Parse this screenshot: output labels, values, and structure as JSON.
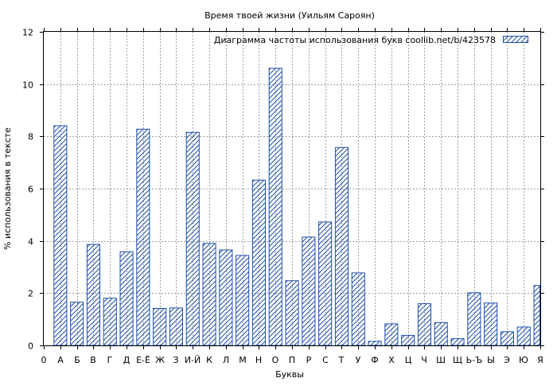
{
  "colors": {
    "bar_stroke": "#1f4fa8",
    "hatch": "#1f4fa8",
    "grid": "#a0a0a0",
    "background": "#ffffff"
  },
  "chart_data": {
    "type": "bar",
    "title": "Время твоей жизни (Уильям Сароян)",
    "legend": {
      "label": "Диаграмма частоты использования букв  coollib.net/b/423578",
      "position": "top-right"
    },
    "xlabel": "Буквы",
    "ylabel": "% использования в тексте",
    "ylim": [
      0,
      12
    ],
    "yticks": [
      "0",
      "2",
      "4",
      "6",
      "8",
      "10",
      "12"
    ],
    "grid": true,
    "categories": [
      "А",
      "Б",
      "В",
      "Г",
      "Д",
      "Е-Ё",
      "Ж",
      "З",
      "И-Й",
      "К",
      "Л",
      "М",
      "Н",
      "О",
      "П",
      "Р",
      "С",
      "Т",
      "У",
      "Ф",
      "Х",
      "Ц",
      "Ч",
      "Ш",
      "Щ",
      "Ь-Ъ",
      "Ы",
      "Э",
      "Ю",
      "Я"
    ],
    "x_tick_labels": [
      "0",
      "А",
      "Б",
      "В",
      "Г",
      "Д",
      "Е-Ё",
      "Ж",
      "З",
      "И-Й",
      "К",
      "Л",
      "М",
      "Н",
      "О",
      "П",
      "Р",
      "С",
      "Т",
      "У",
      "Ф",
      "Х",
      "Ц",
      "Ч",
      "Ш",
      "Щ",
      "Ь-Ъ",
      "Ы",
      "Э",
      "Ю",
      "Я"
    ],
    "series": [
      {
        "values": [
          8.42,
          1.67,
          3.88,
          1.82,
          3.6,
          8.29,
          1.43,
          1.45,
          8.17,
          3.92,
          3.67,
          3.46,
          6.34,
          10.62,
          2.49,
          4.16,
          4.74,
          7.59,
          2.79,
          0.17,
          0.84,
          0.4,
          1.61,
          0.89,
          0.27,
          2.03,
          1.64,
          0.54,
          0.72,
          2.31
        ]
      }
    ]
  }
}
